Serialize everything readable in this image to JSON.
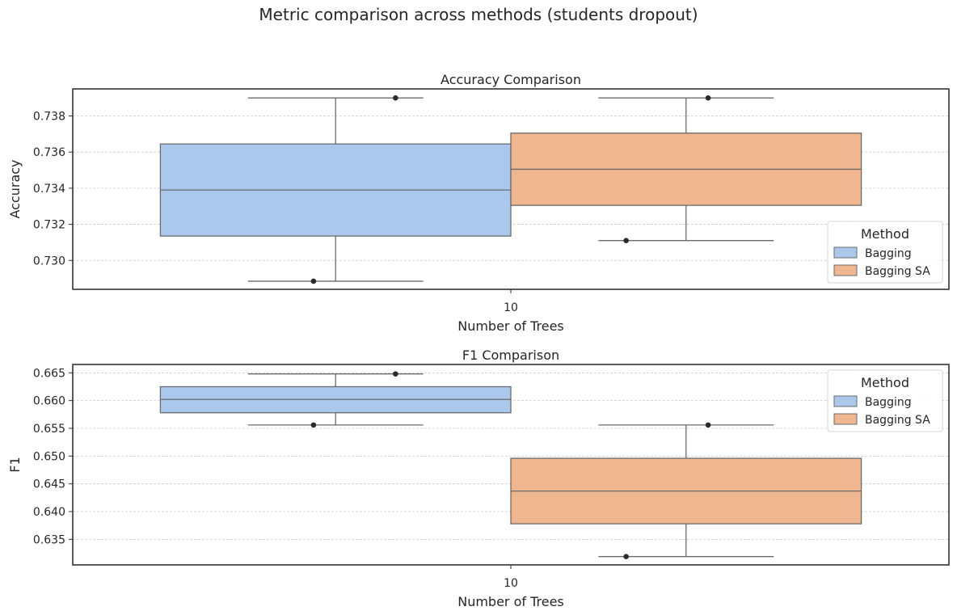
{
  "figure": {
    "title": "Metric comparison across methods (students dropout)"
  },
  "colors": {
    "Bagging": "#a9c8ec",
    "Bagging SA": "#f0b690",
    "box_edge": "#6b6b6b",
    "frame": "#333333",
    "grid": "#cccccc",
    "flier": "#2a2a2a"
  },
  "chart_data": [
    {
      "type": "box",
      "title": "Accuracy Comparison",
      "xlabel": "Number of Trees",
      "ylabel": "Accuracy",
      "categories": [
        "10"
      ],
      "ylim": [
        0.7284,
        0.7395
      ],
      "yticks": [
        0.73,
        0.732,
        0.734,
        0.736,
        0.738
      ],
      "ytick_labels": [
        "0.730",
        "0.732",
        "0.734",
        "0.736",
        "0.738"
      ],
      "grid": true,
      "legend": {
        "title": "Method",
        "position": "lower-right"
      },
      "series": [
        {
          "name": "Bagging",
          "whisker_low": 0.72885,
          "q1": 0.73135,
          "median": 0.7339,
          "q3": 0.73645,
          "whisker_high": 0.739,
          "points": [
            0.72885,
            0.739
          ]
        },
        {
          "name": "Bagging SA",
          "whisker_low": 0.7311,
          "q1": 0.73305,
          "median": 0.73505,
          "q3": 0.73705,
          "whisker_high": 0.739,
          "points": [
            0.7311,
            0.739
          ]
        }
      ]
    },
    {
      "type": "box",
      "title": "F1 Comparison",
      "xlabel": "Number of Trees",
      "ylabel": "F1",
      "categories": [
        "10"
      ],
      "ylim": [
        0.6304,
        0.6665
      ],
      "yticks": [
        0.635,
        0.64,
        0.645,
        0.65,
        0.655,
        0.66,
        0.665
      ],
      "ytick_labels": [
        "0.635",
        "0.640",
        "0.645",
        "0.650",
        "0.655",
        "0.660",
        "0.665"
      ],
      "grid": true,
      "legend": {
        "title": "Method",
        "position": "upper-right"
      },
      "series": [
        {
          "name": "Bagging",
          "whisker_low": 0.6556,
          "q1": 0.6578,
          "median": 0.6602,
          "q3": 0.6625,
          "whisker_high": 0.6648,
          "points": [
            0.6556,
            0.6648
          ]
        },
        {
          "name": "Bagging SA",
          "whisker_low": 0.6319,
          "q1": 0.6378,
          "median": 0.6437,
          "q3": 0.6496,
          "whisker_high": 0.6556,
          "points": [
            0.6319,
            0.6556
          ]
        }
      ]
    }
  ]
}
